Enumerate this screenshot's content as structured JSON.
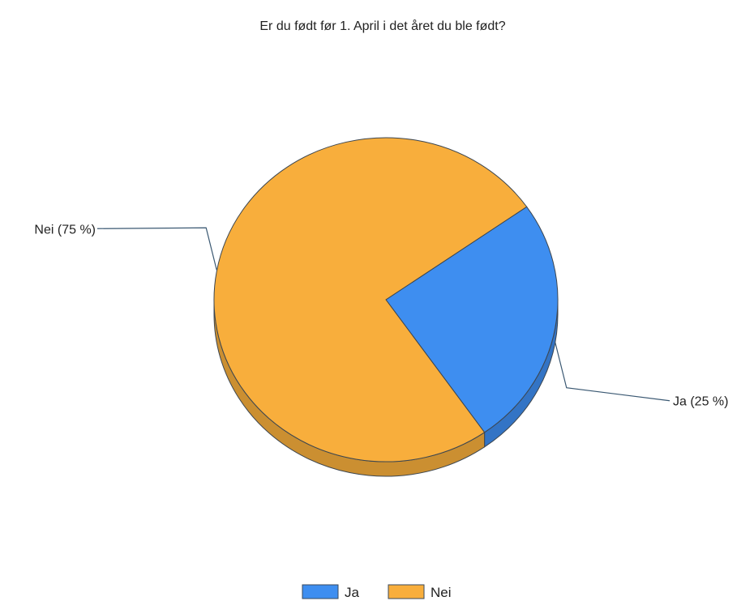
{
  "chart_data": {
    "type": "pie",
    "title": "Er du født før 1. April i det året du ble født?",
    "style": "3d-pie",
    "categories": [
      "Ja",
      "Nei"
    ],
    "values": [
      25,
      75
    ],
    "unit": "%",
    "data_labels": [
      "Ja (25 %)",
      "Nei (75 %)"
    ],
    "colors": {
      "Ja": "#3e8ef0",
      "Nei": "#f8ae3c",
      "outline": "#3c4650",
      "leader": "#3a5872"
    },
    "legend": {
      "position": "bottom-center",
      "entries": [
        "Ja",
        "Nei"
      ]
    }
  }
}
